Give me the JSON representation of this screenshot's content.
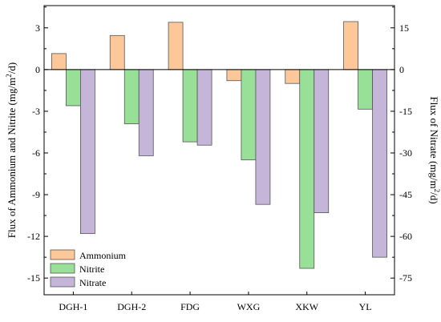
{
  "chart_data": {
    "type": "bar",
    "categories": [
      "DGH-1",
      "DGH-2",
      "FDG",
      "WXG",
      "XKW",
      "YL"
    ],
    "series": [
      {
        "name": "Ammonium",
        "axis": "left",
        "color": "#fdc899",
        "values": [
          1.15,
          2.45,
          3.4,
          -0.8,
          -1.0,
          3.45
        ]
      },
      {
        "name": "Nitrite",
        "axis": "left",
        "color": "#98df98",
        "values": [
          -2.6,
          -3.9,
          -5.2,
          -6.5,
          -14.3,
          -2.85
        ]
      },
      {
        "name": "Nitrate",
        "axis": "right",
        "color": "#c4b5d9",
        "values": [
          -59,
          -31,
          -27.2,
          -48.5,
          -51.5,
          -67.5
        ]
      }
    ],
    "left_axis": {
      "label_parts": [
        "Flux of Ammonium and Nitrite (mg/m",
        "2",
        "/d)"
      ],
      "ylim": [
        -16.2,
        4.6
      ],
      "ticks": [
        3,
        0,
        -3,
        -6,
        -9,
        -12,
        -15
      ],
      "tick_labels": [
        "3",
        "0",
        "-3",
        "-6",
        "-9",
        "-12",
        "-15"
      ]
    },
    "right_axis": {
      "label_parts": [
        "Flux of Nitrate (mg/m",
        "2",
        "/d)"
      ],
      "ylim": [
        -81,
        23
      ],
      "ticks": [
        15,
        0,
        -15,
        -30,
        -45,
        -60,
        -75
      ],
      "tick_labels": [
        "15",
        "0",
        "-15",
        "-30",
        "-45",
        "-60",
        "-75"
      ]
    },
    "legend": {
      "position": "bottom-left",
      "items": [
        "Ammonium",
        "Nitrite",
        "Nitrate"
      ]
    },
    "grid": false,
    "zero_line": true
  }
}
